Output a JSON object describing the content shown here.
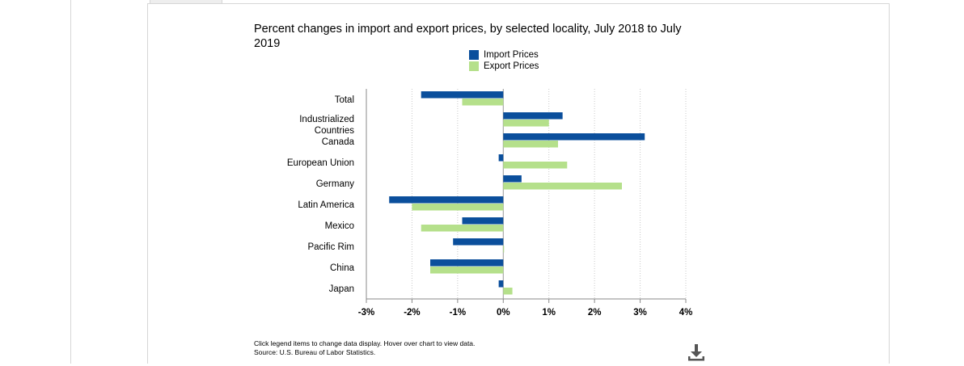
{
  "chart_data": {
    "type": "bar",
    "orientation": "horizontal",
    "title": "Percent changes in import and export prices, by selected locality, July 2018 to July 2019",
    "categories": [
      "Total",
      "Industrialized Countries",
      "Canada",
      "European Union",
      "Germany",
      "Latin America",
      "Mexico",
      "Pacific Rim",
      "China",
      "Japan"
    ],
    "category_lines": [
      [
        "Total"
      ],
      [
        "Industrialized",
        "Countries"
      ],
      [
        "Canada"
      ],
      [
        "European Union"
      ],
      [
        "Germany"
      ],
      [
        "Latin America"
      ],
      [
        "Mexico"
      ],
      [
        "Pacific Rim"
      ],
      [
        "China"
      ],
      [
        "Japan"
      ]
    ],
    "series": [
      {
        "name": "Import Prices",
        "color": "#0b4f9c",
        "values": [
          -1.8,
          1.3,
          3.1,
          -0.1,
          0.4,
          -2.5,
          -0.9,
          -1.1,
          -1.6,
          -0.1
        ]
      },
      {
        "name": "Export Prices",
        "color": "#b5e08b",
        "values": [
          -0.9,
          1.0,
          1.2,
          1.4,
          2.6,
          -2.0,
          -1.8,
          0.0,
          -1.6,
          0.2
        ]
      }
    ],
    "xlim": [
      -3,
      4
    ],
    "xticks": [
      -3,
      -2,
      -1,
      0,
      1,
      2,
      3,
      4
    ],
    "tick_labels": [
      "-3%",
      "-2%",
      "-1%",
      "0%",
      "1%",
      "2%",
      "3%",
      "4%"
    ],
    "grid": true,
    "legend_position": "top-center"
  },
  "footer": {
    "instruction": "Click legend items to change data display. Hover over chart to view data.",
    "source": "Source: U.S. Bureau of Labor Statistics."
  },
  "icons": {
    "download": "download-icon"
  }
}
